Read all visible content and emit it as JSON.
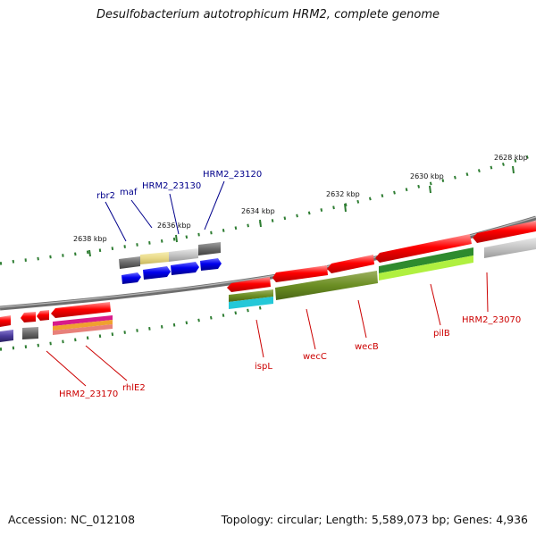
{
  "title": "Desulfobacterium autotrophicum HRM2, complete genome",
  "footer": {
    "accession": "Accession: NC_012108",
    "topology": "Topology: circular; Length: 5,589,073 bp; Genes: 4,936"
  },
  "ruler": [
    "2638 kbp",
    "2636 kbp",
    "2634 kbp",
    "2632 kbp",
    "2630 kbp",
    "2628 kbp"
  ],
  "labels_blue": [
    "rbr2",
    "maf",
    "HRM2_23130",
    "HRM2_23120"
  ],
  "labels_red": [
    "HRM2_23170",
    "rhlE2",
    "ispL",
    "wecC",
    "wecB",
    "pilB",
    "HRM2_23070"
  ],
  "colors": {
    "backbone": "#808080",
    "cds": "#ff0000",
    "blue_label": "#00008b",
    "red_label": "#cc0000",
    "tick": "#2e7d32"
  }
}
